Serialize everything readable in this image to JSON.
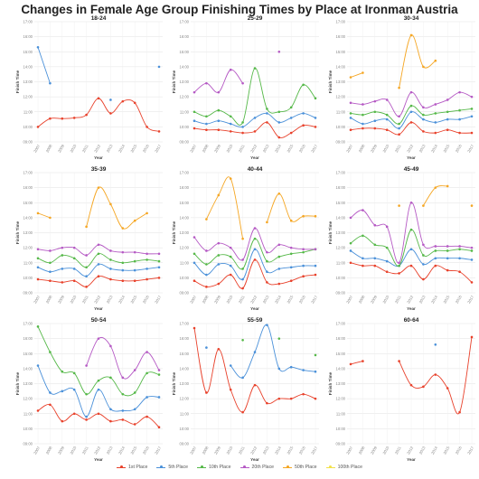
{
  "title": "Changes in Female Age Group Finishing Times by Place at Ironman Austria",
  "colors": {
    "1st": "#e8412b",
    "5th": "#4a90d9",
    "10th": "#55b848",
    "20th": "#b559c4",
    "50th": "#f5a623",
    "100th": "#f2e14a"
  },
  "chart_data": {
    "type": "line",
    "years": [
      "2007",
      "2008",
      "2009",
      "2010",
      "2011",
      "2012",
      "2013",
      "2014",
      "2015",
      "2016",
      "2017"
    ],
    "ylabel": "Finish Time",
    "xlabel": "Year",
    "ylim": [
      9,
      17
    ],
    "yticks": [
      "09:00",
      "10:00",
      "11:00",
      "12:00",
      "13:00",
      "14:00",
      "15:00",
      "16:00",
      "17:00"
    ],
    "legend": [
      {
        "key": "1st",
        "label": "1st Place"
      },
      {
        "key": "5th",
        "label": "5th Place"
      },
      {
        "key": "10th",
        "label": "10th Place"
      },
      {
        "key": "20th",
        "label": "20th Place"
      },
      {
        "key": "50th",
        "label": "50th Place"
      },
      {
        "key": "100th",
        "label": "100th Place"
      }
    ],
    "panels": [
      {
        "title": "18-24",
        "series": [
          {
            "key": "1st",
            "values": [
              10.0,
              10.55,
              10.55,
              10.6,
              10.8,
              11.9,
              10.9,
              11.7,
              11.6,
              10.0,
              9.7
            ]
          },
          {
            "key": "5th",
            "values": [
              15.3,
              12.9,
              null,
              null,
              null,
              null,
              11.8,
              null,
              null,
              null,
              14.0
            ]
          }
        ]
      },
      {
        "title": "25-29",
        "series": [
          {
            "key": "1st",
            "values": [
              9.9,
              9.8,
              9.8,
              9.7,
              9.6,
              9.7,
              10.3,
              9.3,
              9.6,
              10.1,
              10.0
            ]
          },
          {
            "key": "5th",
            "values": [
              10.4,
              10.2,
              10.4,
              10.2,
              10.0,
              10.6,
              10.9,
              10.3,
              10.6,
              10.9,
              10.6
            ]
          },
          {
            "key": "10th",
            "values": [
              11.0,
              10.7,
              11.1,
              10.7,
              10.3,
              13.9,
              11.2,
              11.0,
              11.3,
              12.8,
              11.9
            ]
          },
          {
            "key": "20th",
            "values": [
              12.3,
              12.9,
              12.3,
              13.8,
              12.9,
              null,
              null,
              15.0,
              null,
              null,
              null
            ]
          }
        ]
      },
      {
        "title": "30-34",
        "series": [
          {
            "key": "1st",
            "values": [
              9.8,
              9.9,
              9.9,
              9.8,
              9.5,
              10.3,
              9.7,
              9.6,
              9.8,
              9.6,
              9.6
            ]
          },
          {
            "key": "5th",
            "values": [
              10.6,
              10.2,
              10.4,
              10.5,
              9.9,
              11.0,
              10.5,
              10.3,
              10.5,
              10.5,
              10.7
            ]
          },
          {
            "key": "10th",
            "values": [
              10.9,
              10.8,
              11.0,
              10.8,
              10.2,
              11.4,
              10.8,
              10.9,
              11.0,
              11.1,
              11.2
            ]
          },
          {
            "key": "20th",
            "values": [
              11.6,
              11.5,
              11.7,
              11.8,
              10.7,
              12.3,
              11.3,
              11.5,
              11.8,
              12.3,
              12.0
            ]
          },
          {
            "key": "50th",
            "values": [
              13.3,
              13.6,
              null,
              null,
              12.6,
              16.1,
              14.0,
              14.4,
              null,
              null,
              null
            ]
          }
        ]
      },
      {
        "title": "35-39",
        "series": [
          {
            "key": "1st",
            "values": [
              9.9,
              9.8,
              9.7,
              9.8,
              9.4,
              10.1,
              9.9,
              9.8,
              9.8,
              9.9,
              10.0
            ]
          },
          {
            "key": "5th",
            "values": [
              10.7,
              10.4,
              10.6,
              10.6,
              10.1,
              10.9,
              10.6,
              10.5,
              10.5,
              10.6,
              10.7
            ]
          },
          {
            "key": "10th",
            "values": [
              11.3,
              11.0,
              11.5,
              11.3,
              10.7,
              11.6,
              11.2,
              11.0,
              11.1,
              11.2,
              11.1
            ]
          },
          {
            "key": "20th",
            "values": [
              11.9,
              11.8,
              12.0,
              12.0,
              11.5,
              12.2,
              11.8,
              11.7,
              11.7,
              11.6,
              11.6
            ]
          },
          {
            "key": "50th",
            "values": [
              14.3,
              14.0,
              null,
              null,
              13.4,
              16.0,
              14.9,
              13.3,
              13.8,
              14.3,
              null
            ]
          }
        ]
      },
      {
        "title": "40-44",
        "series": [
          {
            "key": "1st",
            "values": [
              9.8,
              9.4,
              9.6,
              10.2,
              9.3,
              11.2,
              9.7,
              9.6,
              9.8,
              10.1,
              10.2
            ]
          },
          {
            "key": "5th",
            "values": [
              11.0,
              10.2,
              10.9,
              10.8,
              9.9,
              11.9,
              10.4,
              10.6,
              10.7,
              10.8,
              10.8
            ]
          },
          {
            "key": "10th",
            "values": [
              11.6,
              10.9,
              11.5,
              11.4,
              10.6,
              12.6,
              11.1,
              11.4,
              11.6,
              11.7,
              11.9
            ]
          },
          {
            "key": "20th",
            "values": [
              12.7,
              11.8,
              12.3,
              12.0,
              11.2,
              13.3,
              11.7,
              12.2,
              12.0,
              11.9,
              11.9
            ]
          },
          {
            "key": "50th",
            "values": [
              null,
              13.9,
              15.5,
              16.6,
              12.6,
              null,
              13.7,
              15.6,
              13.8,
              14.1,
              14.1
            ]
          }
        ]
      },
      {
        "title": "45-49",
        "series": [
          {
            "key": "1st",
            "values": [
              11.0,
              10.8,
              10.8,
              10.4,
              10.3,
              10.8,
              9.9,
              10.8,
              10.5,
              10.4,
              9.7
            ]
          },
          {
            "key": "5th",
            "values": [
              11.8,
              11.3,
              11.3,
              11.1,
              10.8,
              11.9,
              10.9,
              11.3,
              11.3,
              11.3,
              11.2
            ]
          },
          {
            "key": "10th",
            "values": [
              12.3,
              12.8,
              12.2,
              12.0,
              10.8,
              13.2,
              11.5,
              11.8,
              11.8,
              11.9,
              11.8
            ]
          },
          {
            "key": "20th",
            "values": [
              14.0,
              14.5,
              13.5,
              13.4,
              11.0,
              15.0,
              12.2,
              12.1,
              12.1,
              12.1,
              12.0
            ]
          },
          {
            "key": "50th",
            "values": [
              null,
              null,
              null,
              null,
              14.8,
              null,
              14.8,
              16.0,
              16.1,
              null,
              14.8
            ]
          }
        ]
      },
      {
        "title": "50-54",
        "series": [
          {
            "key": "1st",
            "values": [
              11.2,
              11.6,
              10.5,
              11.0,
              10.6,
              11.0,
              10.5,
              10.6,
              10.3,
              10.8,
              10.1
            ]
          },
          {
            "key": "5th",
            "values": [
              14.2,
              12.4,
              12.5,
              12.6,
              10.8,
              12.6,
              11.3,
              11.2,
              11.3,
              12.1,
              12.1
            ]
          },
          {
            "key": "10th",
            "values": [
              16.8,
              15.1,
              13.8,
              13.7,
              12.3,
              13.2,
              13.4,
              12.3,
              12.4,
              13.7,
              13.6
            ]
          },
          {
            "key": "20th",
            "values": [
              null,
              null,
              null,
              null,
              14.2,
              16.0,
              15.5,
              13.4,
              13.9,
              15.1,
              13.9
            ]
          }
        ]
      },
      {
        "title": "55-59",
        "series": [
          {
            "key": "1st",
            "values": [
              16.7,
              12.4,
              15.3,
              12.6,
              11.1,
              12.9,
              11.7,
              12.0,
              12.0,
              12.3,
              12.0
            ]
          },
          {
            "key": "5th",
            "values": [
              null,
              15.4,
              null,
              14.2,
              13.4,
              15.1,
              16.9,
              14.0,
              14.1,
              13.9,
              13.8
            ]
          },
          {
            "key": "10th",
            "values": [
              null,
              null,
              null,
              null,
              15.9,
              null,
              null,
              16.0,
              null,
              null,
              14.9
            ]
          }
        ]
      },
      {
        "title": "60-64",
        "series": [
          {
            "key": "1st",
            "values": [
              14.3,
              14.5,
              null,
              null,
              14.5,
              12.9,
              12.8,
              13.6,
              12.7,
              11.1,
              16.1
            ]
          },
          {
            "key": "5th",
            "values": [
              null,
              null,
              null,
              null,
              null,
              null,
              null,
              15.6,
              null,
              null,
              null
            ]
          }
        ]
      }
    ]
  }
}
